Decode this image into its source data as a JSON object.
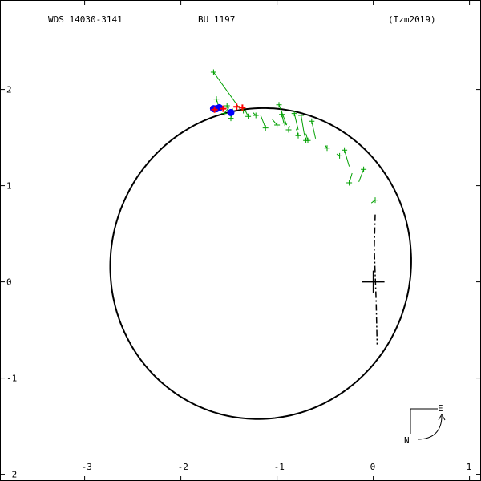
{
  "header": {
    "system": "WDS 14030-3141",
    "discoverer": "BU 1197",
    "reference": "(Izm2019)"
  },
  "chart_data": {
    "type": "scatter",
    "title": "",
    "xlabel": "",
    "ylabel": "",
    "xlim": [
      -3.88,
      1.12
    ],
    "ylim": [
      -2.07,
      2.93
    ],
    "grid": false,
    "x_ticks": [
      {
        "value": -3,
        "label": "-3"
      },
      {
        "value": -2,
        "label": "-2"
      },
      {
        "value": -1,
        "label": "-1"
      },
      {
        "value": 0,
        "label": "0"
      },
      {
        "value": 1,
        "label": "1"
      }
    ],
    "y_ticks": [
      {
        "value": -2,
        "label": "-2"
      },
      {
        "value": -1,
        "label": "-1"
      },
      {
        "value": 0,
        "label": "0"
      },
      {
        "value": 1,
        "label": "1"
      },
      {
        "value": 2,
        "label": "2"
      }
    ],
    "primary_star": {
      "x": 0,
      "y": 0
    },
    "orbit": {
      "center": [
        -1.17,
        0.19
      ],
      "semi_axes": [
        1.56,
        1.62
      ],
      "rotation_deg": -15,
      "color": "#000000"
    },
    "line_of_nodes": {
      "points": [
        [
          0.02,
          0.7
        ],
        [
          0.01,
          0.35
        ],
        [
          0.03,
          -0.2
        ],
        [
          0.04,
          -0.65
        ]
      ]
    },
    "observations": [
      {
        "x": -1.66,
        "y": 2.18,
        "fx": -1.38,
        "fy": 1.79
      },
      {
        "x": -1.63,
        "y": 1.9,
        "fx": -1.6,
        "fy": 1.8
      },
      {
        "x": -1.55,
        "y": 1.75,
        "fx": -1.5,
        "fy": 1.81
      },
      {
        "x": -1.48,
        "y": 1.7,
        "fx": -1.46,
        "fy": 1.8
      },
      {
        "x": -1.52,
        "y": 1.83,
        "fx": -1.52,
        "fy": 1.81
      },
      {
        "x": -1.35,
        "y": 1.78,
        "fx": -1.37,
        "fy": 1.79
      },
      {
        "x": -1.3,
        "y": 1.72,
        "fx": -1.33,
        "fy": 1.78
      },
      {
        "x": -1.22,
        "y": 1.73,
        "fx": -1.25,
        "fy": 1.76
      },
      {
        "x": -1.12,
        "y": 1.6,
        "fx": -1.17,
        "fy": 1.73
      },
      {
        "x": -1.0,
        "y": 1.63,
        "fx": -1.05,
        "fy": 1.69
      },
      {
        "x": -0.98,
        "y": 1.84,
        "fx": -0.9,
        "fy": 1.63
      },
      {
        "x": -0.95,
        "y": 1.74,
        "fx": -0.93,
        "fy": 1.65
      },
      {
        "x": -0.92,
        "y": 1.65,
        "fx": -0.9,
        "fy": 1.63
      },
      {
        "x": -0.88,
        "y": 1.58,
        "fx": -0.87,
        "fy": 1.62
      },
      {
        "x": -0.82,
        "y": 1.75,
        "fx": -0.78,
        "fy": 1.58
      },
      {
        "x": -0.78,
        "y": 1.52,
        "fx": -0.8,
        "fy": 1.59
      },
      {
        "x": -0.75,
        "y": 1.73,
        "fx": -0.72,
        "fy": 1.55
      },
      {
        "x": -0.7,
        "y": 1.47,
        "fx": -0.72,
        "fy": 1.55
      },
      {
        "x": -0.68,
        "y": 1.47,
        "fx": -0.7,
        "fy": 1.54
      },
      {
        "x": -0.64,
        "y": 1.67,
        "fx": -0.6,
        "fy": 1.49
      },
      {
        "x": -0.48,
        "y": 1.39,
        "fx": -0.5,
        "fy": 1.42
      },
      {
        "x": -0.35,
        "y": 1.31,
        "fx": -0.38,
        "fy": 1.33
      },
      {
        "x": -0.3,
        "y": 1.37,
        "fx": -0.25,
        "fy": 1.2
      },
      {
        "x": -0.25,
        "y": 1.03,
        "fx": -0.22,
        "fy": 1.13
      },
      {
        "x": -0.1,
        "y": 1.17,
        "fx": -0.15,
        "fy": 1.04
      },
      {
        "x": 0.02,
        "y": 0.85,
        "fx": -0.02,
        "fy": 0.82
      }
    ],
    "recent_observations": [
      {
        "x": -1.65,
        "y": 1.79,
        "color": "#ff0000"
      },
      {
        "x": -1.56,
        "y": 1.8,
        "color": "#ff0000"
      },
      {
        "x": -1.42,
        "y": 1.82,
        "color": "#ff0000"
      },
      {
        "x": -1.36,
        "y": 1.81,
        "color": "#ff0000"
      }
    ],
    "interferometric": [
      {
        "x": -1.66,
        "y": 1.8
      },
      {
        "x": -1.63,
        "y": 1.8
      },
      {
        "x": -1.6,
        "y": 1.81
      },
      {
        "x": -1.48,
        "y": 1.76
      }
    ],
    "colors": {
      "observation": "#00a000",
      "recent": "#ff0000",
      "interferometric": "#0000ff",
      "orbit": "#000000",
      "axes": "#000000"
    }
  },
  "compass": {
    "east": "E",
    "north": "N"
  }
}
